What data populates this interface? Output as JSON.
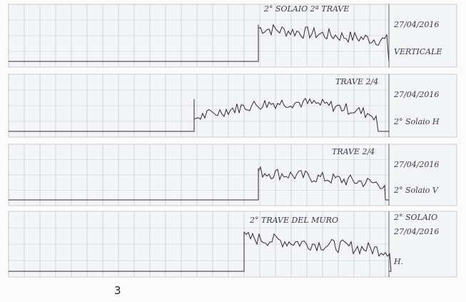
{
  "strips": [
    {
      "title": "2° SOLAIO 2ª TRAVE",
      "date": "27/04/2016",
      "note": "VERTICALE"
    },
    {
      "title": "TRAVE 2/4",
      "date": "27/04/2016",
      "note": "2° Solaio H"
    },
    {
      "title": "TRAVE 2/4",
      "date": "27/04/2016",
      "note": "2° Solaio V"
    },
    {
      "title": "2° TRAVE DEL MURO",
      "date": "27/04/2016",
      "note": "H.",
      "header": "2° SOLAIO"
    }
  ],
  "page_number": "3"
}
